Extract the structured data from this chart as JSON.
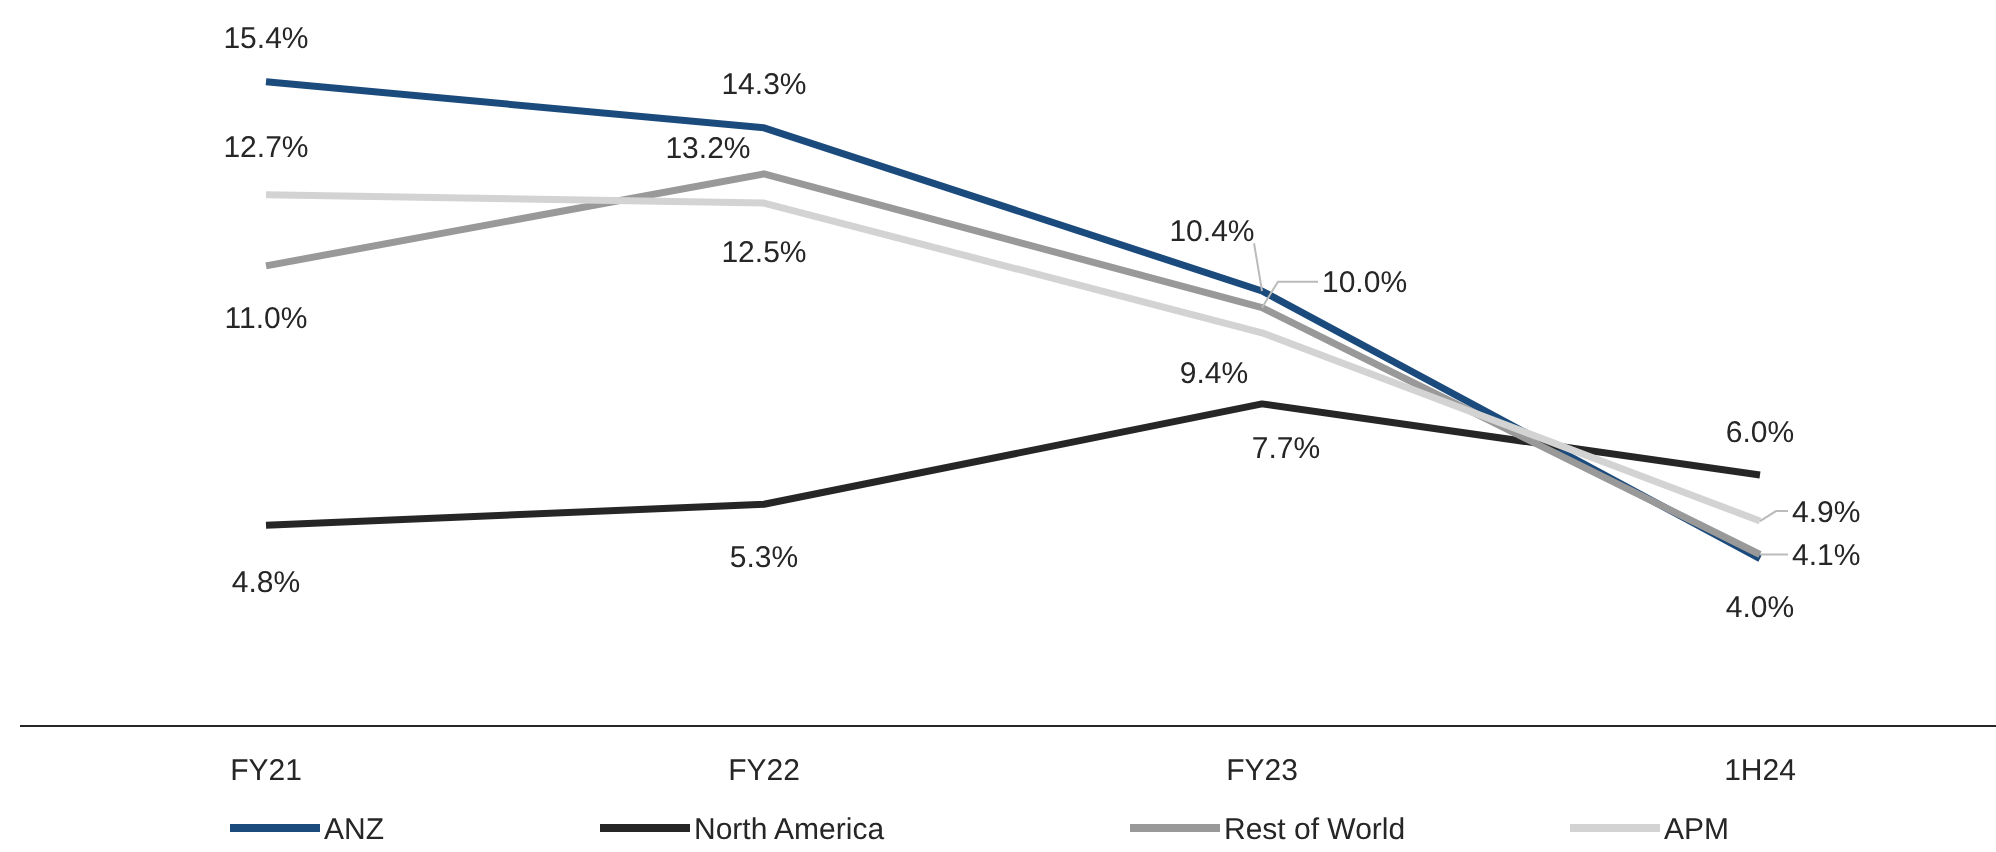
{
  "chart_data": {
    "type": "line",
    "categories": [
      "FY21",
      "FY22",
      "FY23",
      "1H24"
    ],
    "series": [
      {
        "name": "ANZ",
        "color": "#1b4a7c",
        "values": [
          15.4,
          14.3,
          10.4,
          4.0
        ],
        "value_labels": [
          "15.4%",
          "14.3%",
          "10.4%",
          "4.0%"
        ]
      },
      {
        "name": "North America",
        "color": "#262626",
        "values": [
          4.8,
          5.3,
          7.7,
          6.0
        ],
        "value_labels": [
          "4.8%",
          "5.3%",
          "7.7%",
          "6.0%"
        ]
      },
      {
        "name": "Rest of World",
        "color": "#999999",
        "values": [
          11.0,
          13.2,
          10.0,
          4.1
        ],
        "value_labels": [
          "11.0%",
          "13.2%",
          "10.0%",
          "4.1%"
        ]
      },
      {
        "name": "APM",
        "color": "#d3d3d3",
        "values": [
          12.7,
          12.5,
          9.4,
          4.9
        ],
        "value_labels": [
          "12.7%",
          "12.5%",
          "9.4%",
          "4.9%"
        ]
      }
    ],
    "legend": "bottom",
    "grid": false,
    "marker": "none",
    "line_style": "solid"
  }
}
